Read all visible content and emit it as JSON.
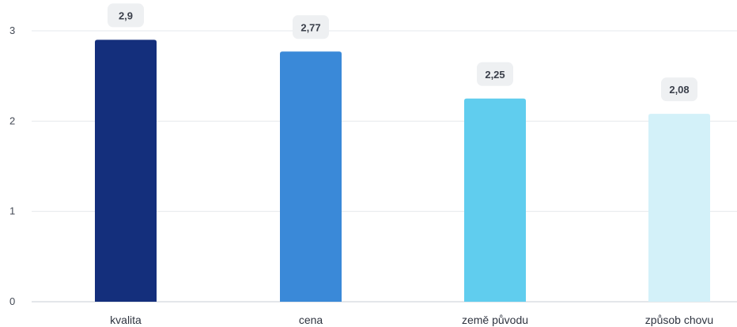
{
  "chart_data": {
    "type": "bar",
    "categories": [
      "kvalita",
      "cena",
      "země původu",
      "způsob chovu"
    ],
    "values": [
      2.9,
      2.77,
      2.25,
      2.08
    ],
    "data_labels": [
      "2,9",
      "2,77",
      "2,25",
      "2,08"
    ],
    "ylim": [
      0,
      3
    ],
    "yticks": [
      0,
      1,
      2,
      3
    ],
    "ytick_labels": [
      "0",
      "1",
      "2",
      "3"
    ],
    "grid": true,
    "legend": "none",
    "colors": [
      "#142f7c",
      "#3a89d8",
      "#60cdee",
      "#d3f1f9"
    ]
  }
}
